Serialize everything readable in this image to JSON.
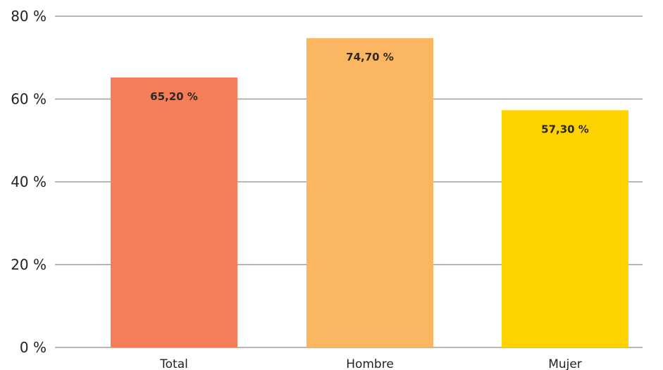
{
  "chart_data": {
    "type": "bar",
    "categories": [
      "Total",
      "Hombre",
      "Mujer"
    ],
    "values": [
      65.2,
      74.7,
      57.3
    ],
    "data_labels": [
      "65,20 %",
      "74,70 %",
      "57,30 %"
    ],
    "colors": [
      "#f37e58",
      "#fab660",
      "#fdd200"
    ],
    "ylim": [
      0,
      80
    ],
    "yticks": [
      0,
      20,
      40,
      60,
      80
    ],
    "ytick_labels": [
      "0 %",
      "20 %",
      "40 %",
      "60 %",
      "80 %"
    ],
    "grid": true,
    "gridline_color": "#a39e95",
    "title": "",
    "xlabel": "",
    "ylabel": ""
  }
}
